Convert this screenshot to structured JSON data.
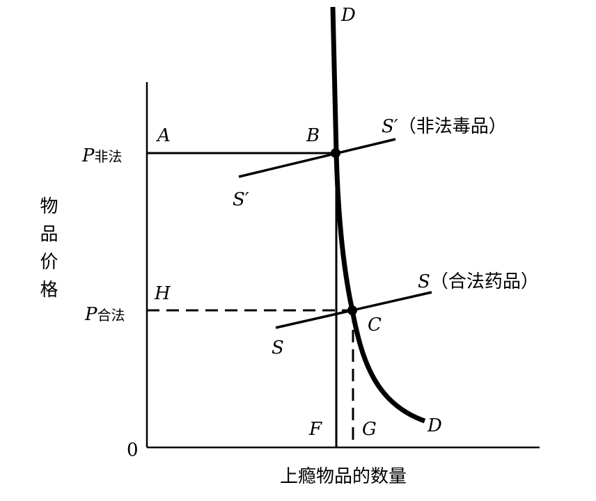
{
  "diagram": {
    "y_axis_label": "物品价格",
    "x_axis_label": "上瘾物品的数量",
    "origin": "0",
    "demand_top": "D",
    "demand_bottom": "D",
    "point_a": "A",
    "point_b": "B",
    "point_h": "H",
    "point_c": "C",
    "point_f": "F",
    "point_g": "G",
    "price_illegal": {
      "symbol": "P",
      "subscript": "非法"
    },
    "price_legal": {
      "symbol": "P",
      "subscript": "合法"
    },
    "supply_illegal_top": {
      "symbol": "S′",
      "note": "（非法毒品）"
    },
    "supply_illegal_bottom": "S′",
    "supply_legal_top": {
      "symbol": "S",
      "note": "（合法药品）"
    },
    "supply_legal_bottom": "S"
  }
}
